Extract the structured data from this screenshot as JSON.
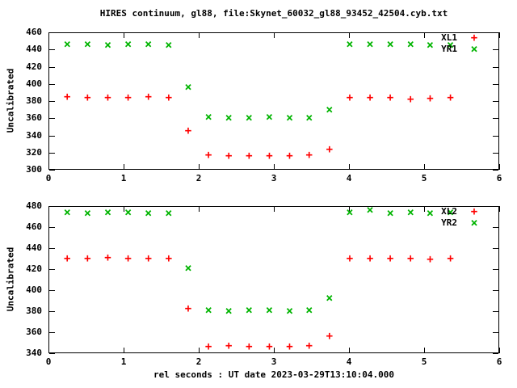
{
  "title": "HIRES continuum, gl88, file:Skynet_60032_gl88_93452_42504.cyb.txt",
  "xlabel": "rel seconds : UT date 2023-03-29T13:10:04.000",
  "colors": {
    "series_red": "#ff0000",
    "series_green": "#00b400",
    "axis": "#000000",
    "background": "#ffffff",
    "text": "#000000"
  },
  "chart_data": [
    {
      "type": "scatter",
      "panel": "top",
      "ylabel": "Uncalibrated",
      "xlim": [
        0,
        6
      ],
      "ylim": [
        300,
        460
      ],
      "x_ticks": [
        0,
        1,
        2,
        3,
        4,
        5,
        6
      ],
      "y_ticks": [
        300,
        320,
        340,
        360,
        380,
        400,
        420,
        440,
        460
      ],
      "grid": false,
      "legend_position": "top-right-inside",
      "x": [
        0.25,
        0.52,
        0.79,
        1.06,
        1.33,
        1.6,
        1.86,
        2.13,
        2.4,
        2.67,
        2.94,
        3.21,
        3.47,
        3.74,
        4.01,
        4.28,
        4.55,
        4.82,
        5.08,
        5.35
      ],
      "series": [
        {
          "name": "XL1",
          "marker": "+",
          "color": "#ff0000",
          "values": [
            385,
            384,
            384,
            384,
            385,
            384,
            345,
            317,
            316,
            316,
            316,
            316,
            317,
            324,
            384,
            384,
            384,
            382,
            383,
            384
          ]
        },
        {
          "name": "YR1",
          "marker": "×",
          "color": "#00b400",
          "values": [
            446,
            446,
            445,
            446,
            446,
            445,
            396,
            361,
            360,
            360,
            361,
            360,
            360,
            370,
            446,
            446,
            446,
            446,
            445,
            445
          ]
        }
      ]
    },
    {
      "type": "scatter",
      "panel": "bottom",
      "ylabel": "Uncalibrated",
      "xlim": [
        0,
        6
      ],
      "ylim": [
        340,
        480
      ],
      "x_ticks": [
        0,
        1,
        2,
        3,
        4,
        5,
        6
      ],
      "y_ticks": [
        340,
        360,
        380,
        400,
        420,
        440,
        460,
        480
      ],
      "grid": false,
      "legend_position": "top-right-inside",
      "x": [
        0.25,
        0.52,
        0.79,
        1.06,
        1.33,
        1.6,
        1.86,
        2.13,
        2.4,
        2.67,
        2.94,
        3.21,
        3.47,
        3.74,
        4.01,
        4.28,
        4.55,
        4.82,
        5.08,
        5.35
      ],
      "series": [
        {
          "name": "XL2",
          "marker": "+",
          "color": "#ff0000",
          "values": [
            430,
            430,
            431,
            430,
            430,
            430,
            382,
            346,
            347,
            346,
            346,
            346,
            347,
            356,
            430,
            430,
            430,
            430,
            429,
            430
          ]
        },
        {
          "name": "YR2",
          "marker": "×",
          "color": "#00b400",
          "values": [
            474,
            473,
            474,
            474,
            473,
            473,
            421,
            381,
            380,
            381,
            381,
            380,
            381,
            392,
            474,
            476,
            473,
            474,
            473,
            474
          ]
        }
      ]
    }
  ]
}
